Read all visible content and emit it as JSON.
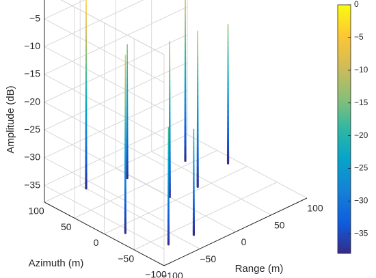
{
  "chart_data": {
    "type": "3d-stem",
    "xlabel": "Range (m)",
    "ylabel": "Azimuth (m)",
    "zlabel": "Amplitude (dB)",
    "xlim": [
      -100,
      100
    ],
    "ylim": [
      -100,
      100
    ],
    "zlim": [
      -38,
      0
    ],
    "x_ticks": [
      -100,
      -50,
      0,
      50,
      100
    ],
    "y_ticks": [
      -100,
      -50,
      0,
      50,
      100
    ],
    "z_ticks": [
      0,
      -5,
      -10,
      -15,
      -20,
      -25,
      -30,
      -35
    ],
    "colorbar": {
      "colormap": "parula",
      "limits": [
        -38,
        0
      ],
      "ticks": [
        0,
        -5,
        -10,
        -15,
        -20,
        -25,
        -30,
        -35
      ]
    },
    "grid": true,
    "points": [
      {
        "x": -83,
        "y": -15,
        "z": -6
      },
      {
        "x": -50,
        "y": 90,
        "z": -2
      },
      {
        "x": 0,
        "y": 10,
        "z": -10
      },
      {
        "x": -5,
        "y": 75,
        "z": -14
      },
      {
        "x": -67,
        "y": -68,
        "z": -17
      },
      {
        "x": -35,
        "y": -72,
        "z": -19
      },
      {
        "x": 62,
        "y": 58,
        "z": -8
      },
      {
        "x": 35,
        "y": 5,
        "z": -10
      },
      {
        "x": 90,
        "y": 20,
        "z": -13
      }
    ]
  }
}
